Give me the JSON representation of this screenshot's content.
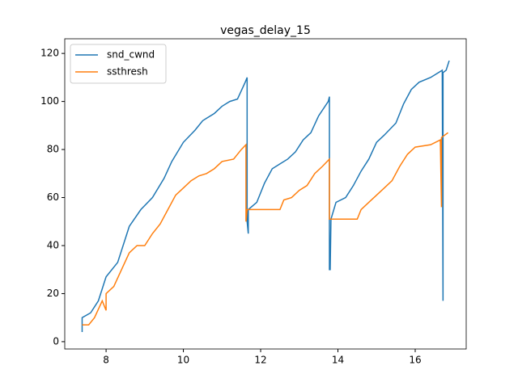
{
  "chart_data": {
    "type": "line",
    "title": "vegas_delay_15",
    "xlim": [
      6.93,
      17.32
    ],
    "ylim": [
      -3.05,
      126.1
    ],
    "xticks": [
      8,
      10,
      12,
      14,
      16
    ],
    "yticks": [
      0,
      20,
      40,
      60,
      80,
      100,
      120
    ],
    "legend": "upper left",
    "series": [
      {
        "name": "snd_cwnd",
        "color": "#1f77b4",
        "x": [
          7.38,
          7.38,
          7.6,
          7.8,
          8.0,
          8.3,
          8.6,
          8.9,
          9.2,
          9.5,
          9.7,
          10.0,
          10.3,
          10.5,
          10.8,
          11.0,
          11.2,
          11.4,
          11.6,
          11.65,
          11.65,
          11.68,
          11.68,
          11.9,
          12.1,
          12.3,
          12.5,
          12.7,
          12.9,
          13.1,
          13.3,
          13.5,
          13.75,
          13.78,
          13.78,
          13.8,
          13.82,
          13.95,
          14.2,
          14.4,
          14.6,
          14.8,
          15.0,
          15.2,
          15.5,
          15.7,
          15.9,
          16.1,
          16.4,
          16.7,
          16.72,
          16.72,
          16.8,
          16.88
        ],
        "values": [
          4,
          10,
          12,
          17,
          27,
          33,
          48,
          55,
          60,
          68,
          75,
          83,
          88,
          92,
          95,
          98,
          100,
          101,
          108,
          110,
          50,
          45,
          55,
          58,
          66,
          72,
          74,
          76,
          79,
          84,
          87,
          94,
          100,
          102,
          30,
          30,
          51,
          58,
          60,
          65,
          71,
          76,
          83,
          86,
          91,
          99,
          105,
          108,
          110,
          113,
          17,
          112,
          113,
          117
        ]
      },
      {
        "name": "ssthresh",
        "color": "#ff7f0e",
        "x": [
          7.38,
          7.55,
          7.7,
          7.9,
          8.0,
          8.0,
          8.2,
          8.4,
          8.6,
          8.8,
          9.0,
          9.2,
          9.4,
          9.6,
          9.8,
          10.0,
          10.2,
          10.4,
          10.6,
          10.8,
          11.0,
          11.3,
          11.5,
          11.62,
          11.62,
          11.65,
          12.5,
          12.6,
          12.8,
          13.0,
          13.2,
          13.4,
          13.6,
          13.78,
          13.78,
          14.5,
          14.6,
          14.8,
          15.0,
          15.2,
          15.4,
          15.6,
          15.8,
          16.0,
          16.4,
          16.65,
          16.68,
          16.68,
          16.85
        ],
        "values": [
          7,
          7,
          10,
          17,
          13,
          20,
          23,
          30,
          37,
          40,
          40,
          45,
          49,
          55,
          61,
          64,
          67,
          69,
          70,
          72,
          75,
          76,
          80,
          82,
          50,
          55,
          55,
          59,
          60,
          63,
          65,
          70,
          73,
          76,
          51,
          51,
          55,
          58,
          61,
          64,
          67,
          73,
          78,
          81,
          82,
          84,
          56,
          85,
          87
        ]
      }
    ]
  }
}
